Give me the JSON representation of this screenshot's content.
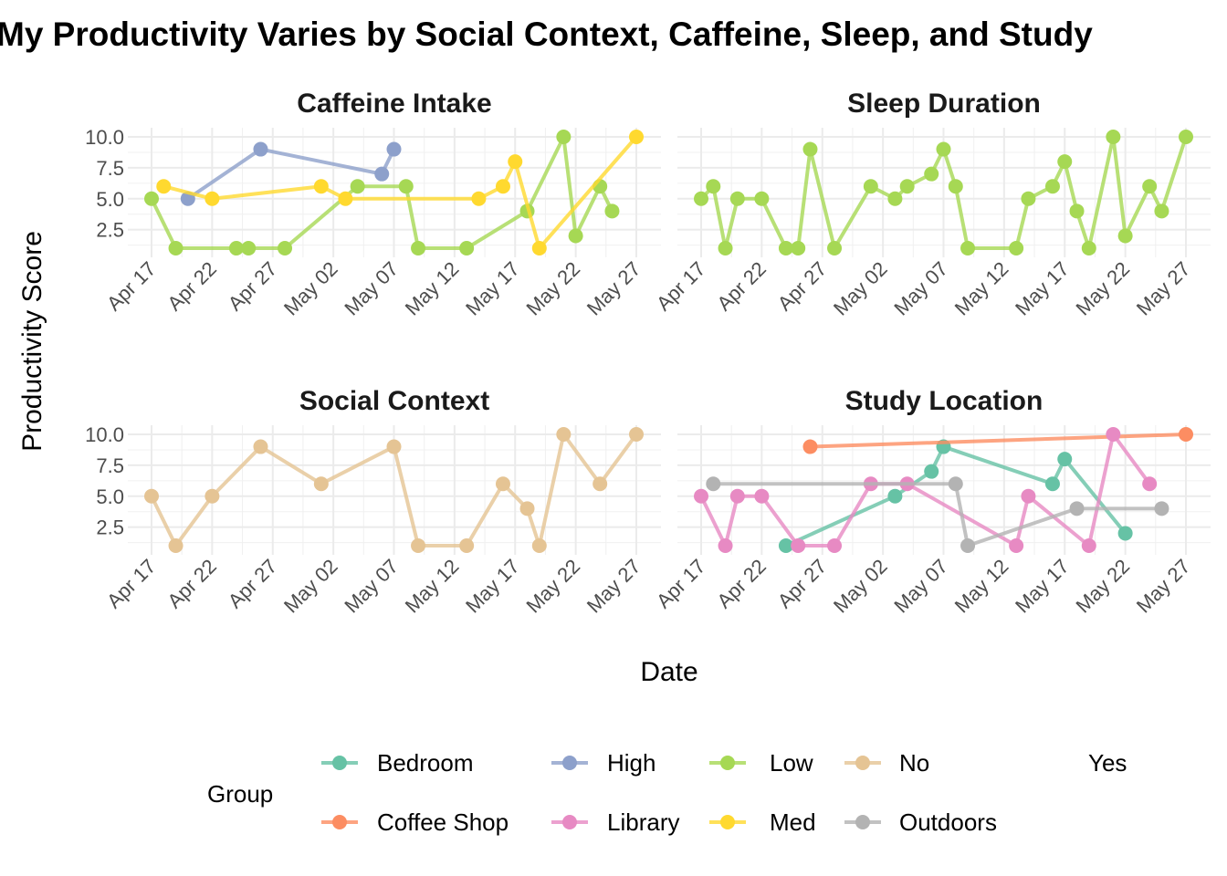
{
  "chart_data": {
    "type": "line",
    "title": "My Productivity Varies by Social Context, Caffeine, Sleep, and Study",
    "xlabel": "Date",
    "ylabel": "Productivity Score",
    "x_ticks": [
      "Apr 17",
      "Apr 22",
      "Apr 27",
      "May 02",
      "May 07",
      "May 12",
      "May 17",
      "May 22",
      "May 27"
    ],
    "y_ticks": [
      "2.5",
      "5.0",
      "7.5",
      "10.0"
    ],
    "ylim": [
      1,
      10
    ],
    "xlim": [
      "Apr 17",
      "May 27"
    ],
    "grid": true,
    "legend": {
      "title": "Group",
      "placement": "bottom",
      "entries": [
        {
          "name": "Bedroom",
          "color": "#66c2a5",
          "shown_key": true
        },
        {
          "name": "Coffee Shop",
          "color": "#fc8d62",
          "shown_key": true
        },
        {
          "name": "High",
          "color": "#8da0cb",
          "shown_key": true
        },
        {
          "name": "Library",
          "color": "#e78ac3",
          "shown_key": true
        },
        {
          "name": "Low",
          "color": "#a6d854",
          "shown_key": true
        },
        {
          "name": "Med",
          "color": "#ffd92f",
          "shown_key": true
        },
        {
          "name": "No",
          "color": "#e5c494",
          "shown_key": true
        },
        {
          "name": "Outdoors",
          "color": "#b3b3b3",
          "shown_key": true
        },
        {
          "name": "Yes",
          "color": "#ffffff",
          "shown_key": false
        }
      ]
    },
    "panels": [
      {
        "title": "Caffeine Intake",
        "series": [
          {
            "name": "Low",
            "color": "#a6d854",
            "points": [
              [
                "Apr 17",
                5
              ],
              [
                "Apr 19",
                1
              ],
              [
                "Apr 24",
                1
              ],
              [
                "Apr 25",
                1
              ],
              [
                "Apr 28",
                1
              ],
              [
                "May 04",
                6
              ],
              [
                "May 08",
                6
              ],
              [
                "May 09",
                1
              ],
              [
                "May 13",
                1
              ],
              [
                "May 18",
                4
              ],
              [
                "May 21",
                10
              ],
              [
                "May 22",
                2
              ],
              [
                "May 24",
                6
              ],
              [
                "May 25",
                4
              ]
            ]
          },
          {
            "name": "High",
            "color": "#8da0cb",
            "points": [
              [
                "Apr 20",
                5
              ],
              [
                "Apr 26",
                9
              ],
              [
                "May 06",
                7
              ],
              [
                "May 07",
                9
              ]
            ]
          },
          {
            "name": "Med",
            "color": "#ffd92f",
            "points": [
              [
                "Apr 18",
                6
              ],
              [
                "Apr 22",
                5
              ],
              [
                "May 01",
                6
              ],
              [
                "May 03",
                5
              ],
              [
                "May 14",
                5
              ],
              [
                "May 16",
                6
              ],
              [
                "May 17",
                8
              ],
              [
                "May 19",
                1
              ],
              [
                "May 27",
                10
              ]
            ]
          }
        ]
      },
      {
        "title": "Sleep Duration",
        "series": [
          {
            "name": "Low",
            "color": "#a6d854",
            "points": [
              [
                "Apr 17",
                5
              ],
              [
                "Apr 18",
                6
              ],
              [
                "Apr 19",
                1
              ],
              [
                "Apr 20",
                5
              ],
              [
                "Apr 22",
                5
              ],
              [
                "Apr 24",
                1
              ],
              [
                "Apr 25",
                1
              ],
              [
                "Apr 26",
                9
              ],
              [
                "Apr 28",
                1
              ],
              [
                "May 01",
                6
              ],
              [
                "May 03",
                5
              ],
              [
                "May 04",
                6
              ],
              [
                "May 06",
                7
              ],
              [
                "May 07",
                9
              ],
              [
                "May 08",
                6
              ],
              [
                "May 09",
                1
              ],
              [
                "May 13",
                1
              ],
              [
                "May 14",
                5
              ],
              [
                "May 16",
                6
              ],
              [
                "May 17",
                8
              ],
              [
                "May 18",
                4
              ],
              [
                "May 19",
                1
              ],
              [
                "May 21",
                10
              ],
              [
                "May 22",
                2
              ],
              [
                "May 24",
                6
              ],
              [
                "May 25",
                4
              ],
              [
                "May 27",
                10
              ]
            ]
          }
        ]
      },
      {
        "title": "Social Context",
        "series": [
          {
            "name": "No",
            "color": "#e5c494",
            "points": [
              [
                "Apr 17",
                5
              ],
              [
                "Apr 19",
                1
              ],
              [
                "Apr 22",
                5
              ],
              [
                "Apr 26",
                9
              ],
              [
                "May 01",
                6
              ],
              [
                "May 07",
                9
              ],
              [
                "May 09",
                1
              ],
              [
                "May 13",
                1
              ],
              [
                "May 16",
                6
              ],
              [
                "May 18",
                4
              ],
              [
                "May 19",
                1
              ],
              [
                "May 21",
                10
              ],
              [
                "May 24",
                6
              ],
              [
                "May 27",
                10
              ]
            ]
          }
        ]
      },
      {
        "title": "Study Location",
        "series": [
          {
            "name": "Bedroom",
            "color": "#66c2a5",
            "points": [
              [
                "Apr 24",
                1
              ],
              [
                "May 03",
                5
              ],
              [
                "May 06",
                7
              ],
              [
                "May 07",
                9
              ],
              [
                "May 16",
                6
              ],
              [
                "May 17",
                8
              ],
              [
                "May 22",
                2
              ]
            ]
          },
          {
            "name": "Coffee Shop",
            "color": "#fc8d62",
            "points": [
              [
                "Apr 26",
                9
              ],
              [
                "May 27",
                10
              ]
            ]
          },
          {
            "name": "Library",
            "color": "#e78ac3",
            "points": [
              [
                "Apr 17",
                5
              ],
              [
                "Apr 19",
                1
              ],
              [
                "Apr 20",
                5
              ],
              [
                "Apr 22",
                5
              ],
              [
                "Apr 25",
                1
              ],
              [
                "Apr 28",
                1
              ],
              [
                "May 01",
                6
              ],
              [
                "May 04",
                6
              ],
              [
                "May 13",
                1
              ],
              [
                "May 14",
                5
              ],
              [
                "May 19",
                1
              ],
              [
                "May 21",
                10
              ],
              [
                "May 24",
                6
              ]
            ]
          },
          {
            "name": "Outdoors",
            "color": "#b3b3b3",
            "points": [
              [
                "Apr 18",
                6
              ],
              [
                "May 08",
                6
              ],
              [
                "May 09",
                1
              ],
              [
                "May 18",
                4
              ],
              [
                "May 25",
                4
              ]
            ]
          }
        ]
      }
    ]
  }
}
